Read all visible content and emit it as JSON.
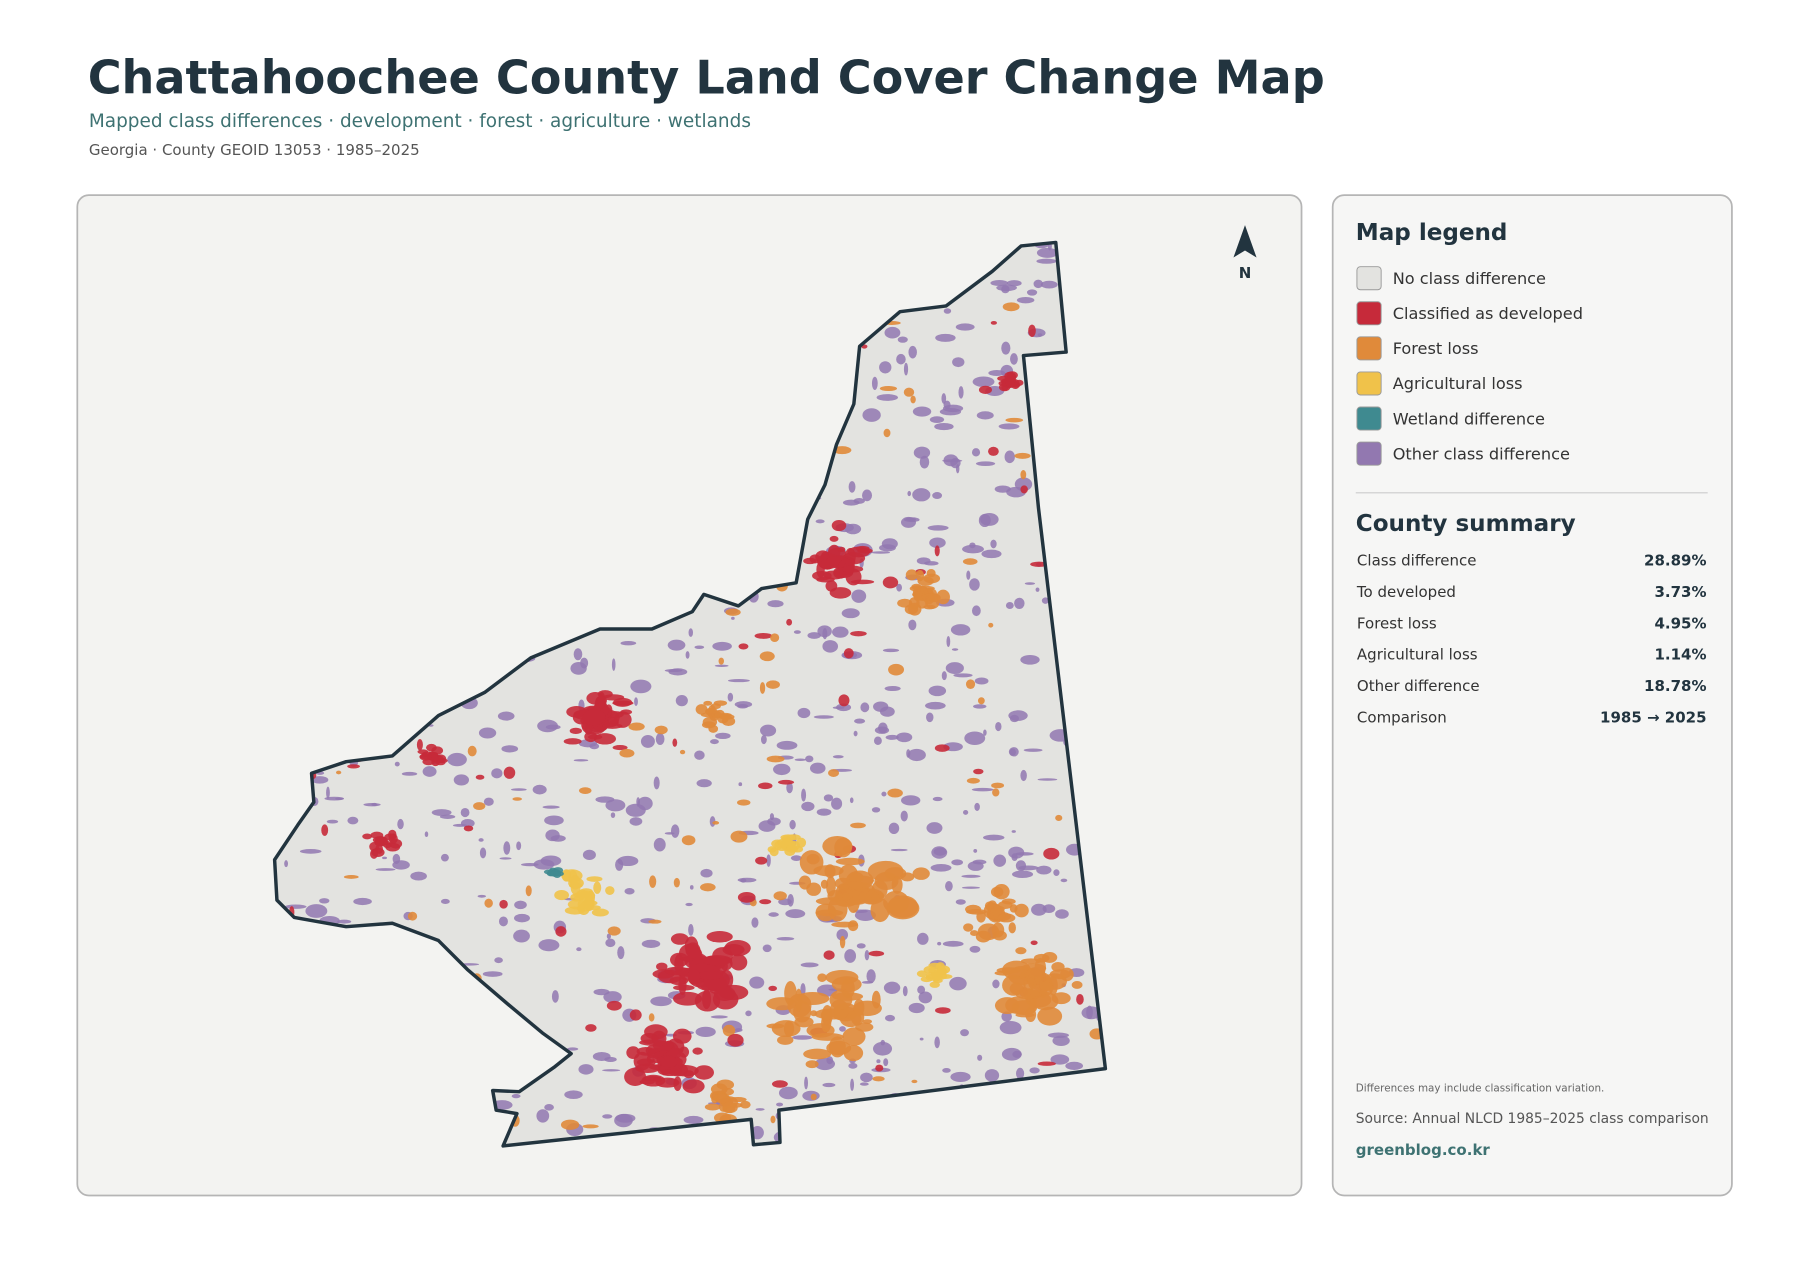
{
  "header": {
    "title": "Chattahoochee County Land Cover Change Map",
    "subtitle": "Mapped class differences · development · forest · agriculture · wetlands",
    "meta": "Georgia · County GEOID 13053 · 1985–2025"
  },
  "map": {
    "north_label": "N"
  },
  "legend": {
    "title": "Map legend",
    "items": [
      {
        "label": "No class difference",
        "color": "#e3e3e0"
      },
      {
        "label": "Classified as developed",
        "color": "#c62a3a"
      },
      {
        "label": "Forest loss",
        "color": "#e08a3a"
      },
      {
        "label": "Agricultural loss",
        "color": "#f0c24a"
      },
      {
        "label": "Wetland difference",
        "color": "#3f8a90"
      },
      {
        "label": "Other class difference",
        "color": "#9278b0"
      }
    ]
  },
  "summary": {
    "title": "County summary",
    "rows": [
      [
        "Class difference",
        "28.89%"
      ],
      [
        "To developed",
        "3.73%"
      ],
      [
        "Forest loss",
        "4.95%"
      ],
      [
        "Agricultural loss",
        "1.14%"
      ],
      [
        "Other difference",
        "18.78%"
      ],
      [
        "Comparison",
        "1985 → 2025"
      ]
    ]
  },
  "footer": {
    "note": "Differences may include classification variation.",
    "source": "Source: Annual NLCD 1985–2025 class comparison",
    "site": "greenblog.co.kr"
  }
}
